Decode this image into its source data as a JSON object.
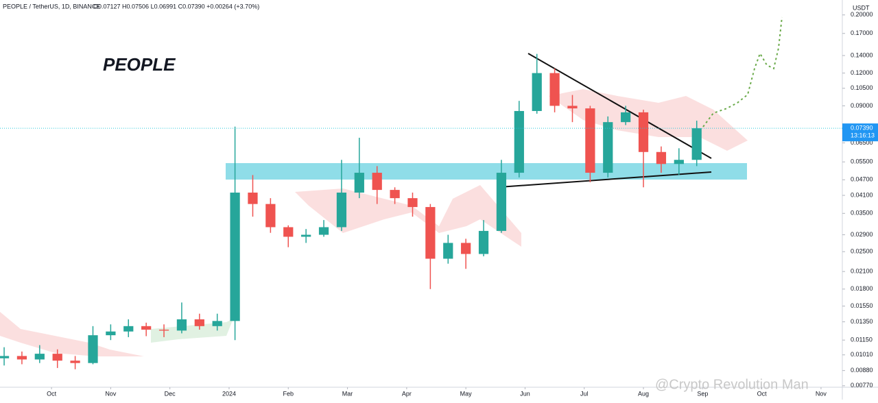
{
  "header": {
    "symbol": "PEOPLE / TetherUS, 1D, BINANCE",
    "ohlc": "O0.07127 H0.07506 L0.06991 C0.07390 +0.00264 (+3.70%)",
    "currency": "USDT",
    "watermark": "@Crypto Revolution Man"
  },
  "chart_data": {
    "type": "candlestick",
    "title": "PEOPLE",
    "log_scale": true,
    "grid": false,
    "up_color": "#26a69a",
    "down_color": "#ef5350",
    "x": [
      -0.8,
      -0.5,
      -0.2,
      0.1,
      0.4,
      0.7,
      1.0,
      1.3,
      1.6,
      1.9,
      2.2,
      2.5,
      2.8,
      3.1,
      3.4,
      3.7,
      4.0,
      4.3,
      4.6,
      4.9,
      5.2,
      5.5,
      5.8,
      6.1,
      6.4,
      6.7,
      7.0,
      7.3,
      7.6,
      7.9,
      8.2,
      8.5,
      8.8,
      9.1,
      9.4,
      9.7,
      10.0,
      10.3,
      10.6,
      10.9
    ],
    "open": [
      0.0098,
      0.01,
      0.0097,
      0.0102,
      0.0096,
      0.0094,
      0.012,
      0.0124,
      0.013,
      0.0126,
      0.0125,
      0.0138,
      0.013,
      0.0136,
      0.042,
      0.038,
      0.031,
      0.0285,
      0.029,
      0.031,
      0.042,
      0.05,
      0.043,
      0.04,
      0.037,
      0.0235,
      0.027,
      0.0245,
      0.03,
      0.05,
      0.086,
      0.12,
      0.09,
      0.088,
      0.05,
      0.078,
      0.085,
      0.06,
      0.054,
      0.056
    ],
    "high": [
      0.0108,
      0.0104,
      0.011,
      0.0106,
      0.01,
      0.013,
      0.0132,
      0.0138,
      0.0134,
      0.0132,
      0.016,
      0.0145,
      0.0145,
      0.075,
      0.049,
      0.04,
      0.0315,
      0.0305,
      0.033,
      0.056,
      0.068,
      0.053,
      0.044,
      0.042,
      0.038,
      0.029,
      0.028,
      0.033,
      0.056,
      0.094,
      0.142,
      0.125,
      0.099,
      0.09,
      0.082,
      0.09,
      0.087,
      0.063,
      0.062,
      0.079
    ],
    "low": [
      0.0092,
      0.0093,
      0.0094,
      0.009,
      0.0089,
      0.0093,
      0.0115,
      0.0118,
      0.0119,
      0.0118,
      0.0122,
      0.0126,
      0.0125,
      0.0115,
      0.034,
      0.0295,
      0.026,
      0.027,
      0.0285,
      0.03,
      0.04,
      0.038,
      0.038,
      0.034,
      0.018,
      0.0225,
      0.0215,
      0.024,
      0.0295,
      0.048,
      0.084,
      0.085,
      0.078,
      0.046,
      0.048,
      0.076,
      0.044,
      0.05,
      0.049,
      0.053
    ],
    "close": [
      0.01,
      0.0097,
      0.0102,
      0.0096,
      0.0094,
      0.012,
      0.0124,
      0.013,
      0.0126,
      0.0125,
      0.0138,
      0.013,
      0.0136,
      0.042,
      0.038,
      0.031,
      0.0285,
      0.029,
      0.031,
      0.042,
      0.05,
      0.043,
      0.04,
      0.037,
      0.0235,
      0.027,
      0.0245,
      0.03,
      0.05,
      0.086,
      0.12,
      0.09,
      0.088,
      0.05,
      0.078,
      0.085,
      0.06,
      0.054,
      0.056,
      0.0739
    ],
    "xlim": [
      -0.87,
      13.36
    ],
    "xticks": [
      {
        "value": 0,
        "label": "Oct"
      },
      {
        "value": 1,
        "label": "Nov"
      },
      {
        "value": 2,
        "label": "Dec"
      },
      {
        "value": 3,
        "label": "2024"
      },
      {
        "value": 4,
        "label": "Feb"
      },
      {
        "value": 5,
        "label": "Mar"
      },
      {
        "value": 6,
        "label": "Apr"
      },
      {
        "value": 7,
        "label": "May"
      },
      {
        "value": 8,
        "label": "Jun"
      },
      {
        "value": 9,
        "label": "Jul"
      },
      {
        "value": 10,
        "label": "Aug"
      },
      {
        "value": 11,
        "label": "Sep"
      },
      {
        "value": 12,
        "label": "Oct"
      },
      {
        "value": 13,
        "label": "Nov"
      }
    ],
    "ylim": [
      0.0076,
      0.228
    ],
    "yticks": [
      {
        "value": 0.2,
        "label": "0.20000"
      },
      {
        "value": 0.17,
        "label": "0.17000"
      },
      {
        "value": 0.14,
        "label": "0.14000"
      },
      {
        "value": 0.12,
        "label": "0.12000"
      },
      {
        "value": 0.105,
        "label": "0.10500"
      },
      {
        "value": 0.09,
        "label": "0.09000"
      },
      {
        "value": 0.065,
        "label": "0.06500"
      },
      {
        "value": 0.055,
        "label": "0.05500"
      },
      {
        "value": 0.047,
        "label": "0.04700"
      },
      {
        "value": 0.041,
        "label": "0.04100"
      },
      {
        "value": 0.035,
        "label": "0.03500"
      },
      {
        "value": 0.029,
        "label": "0.02900"
      },
      {
        "value": 0.025,
        "label": "0.02500"
      },
      {
        "value": 0.021,
        "label": "0.02100"
      },
      {
        "value": 0.018,
        "label": "0.01800"
      },
      {
        "value": 0.0155,
        "label": "0.01550"
      },
      {
        "value": 0.0135,
        "label": "0.01350"
      },
      {
        "value": 0.0115,
        "label": "0.01150"
      },
      {
        "value": 0.0101,
        "label": "0.01010"
      },
      {
        "value": 0.0088,
        "label": "0.00880"
      },
      {
        "value": 0.0077,
        "label": "0.00770"
      }
    ],
    "last_price": {
      "value": 0.0739,
      "label": "0.07390"
    },
    "countdown": "13:16:13"
  }
}
